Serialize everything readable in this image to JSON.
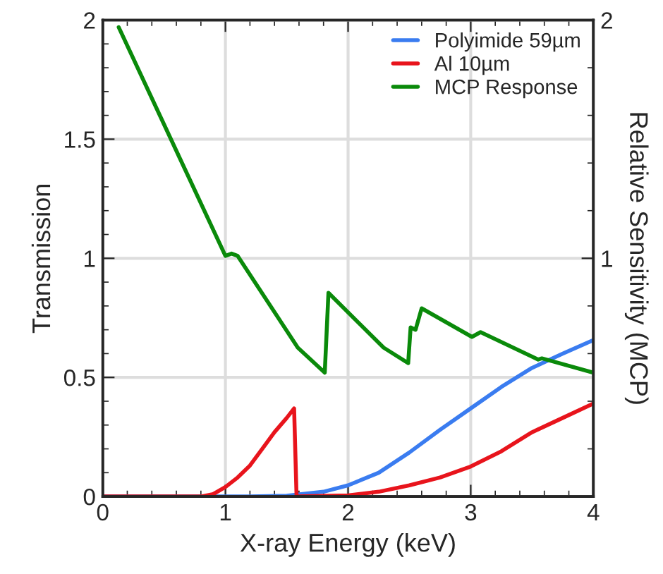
{
  "chart_data": {
    "type": "line",
    "xlabel": "X-ray Energy (keV)",
    "ylabel": "Transmission",
    "y2label": "Relative Sensitivity (MCP)",
    "xlim": [
      0,
      4
    ],
    "ylim": [
      0,
      2
    ],
    "y2lim": [
      0,
      2
    ],
    "xticks": [
      0,
      1,
      2,
      3,
      4
    ],
    "yticks": [
      0,
      0.5,
      1,
      1.5,
      2
    ],
    "y2ticks": [
      1,
      2
    ],
    "grid": true,
    "legend": "top right",
    "series": [
      {
        "name": "Polyimide 59µm",
        "color": "#3a7cf0",
        "x": [
          0,
          0.8,
          1.2,
          1.5,
          1.8,
          2.0,
          2.25,
          2.5,
          2.75,
          3.0,
          3.25,
          3.5,
          3.75,
          4.0
        ],
        "values": [
          0,
          0,
          0,
          0.003,
          0.02,
          0.047,
          0.1,
          0.185,
          0.28,
          0.37,
          0.46,
          0.54,
          0.6,
          0.657
        ]
      },
      {
        "name": "Al 10µm",
        "color": "#e8141c",
        "x": [
          0,
          0.8,
          0.9,
          1.0,
          1.1,
          1.2,
          1.3,
          1.4,
          1.5,
          1.56,
          1.58,
          2.0,
          2.25,
          2.5,
          2.75,
          3.0,
          3.25,
          3.5,
          3.75,
          4.0
        ],
        "values": [
          0,
          0,
          0.01,
          0.04,
          0.08,
          0.13,
          0.2,
          0.27,
          0.33,
          0.37,
          0,
          0.005,
          0.02,
          0.047,
          0.08,
          0.126,
          0.19,
          0.27,
          0.33,
          0.39
        ]
      },
      {
        "name": "MCP Response",
        "color": "#0a8a0a",
        "axis": "y2",
        "x": [
          0.13,
          1.0,
          1.05,
          1.1,
          1.59,
          1.81,
          1.84,
          2.29,
          2.49,
          2.51,
          2.55,
          2.6,
          3.01,
          3.08,
          3.55,
          3.58,
          4.0
        ],
        "values": [
          1.97,
          1.01,
          1.02,
          1.01,
          0.625,
          0.52,
          0.855,
          0.625,
          0.56,
          0.71,
          0.7,
          0.79,
          0.67,
          0.69,
          0.575,
          0.58,
          0.52
        ]
      }
    ]
  }
}
